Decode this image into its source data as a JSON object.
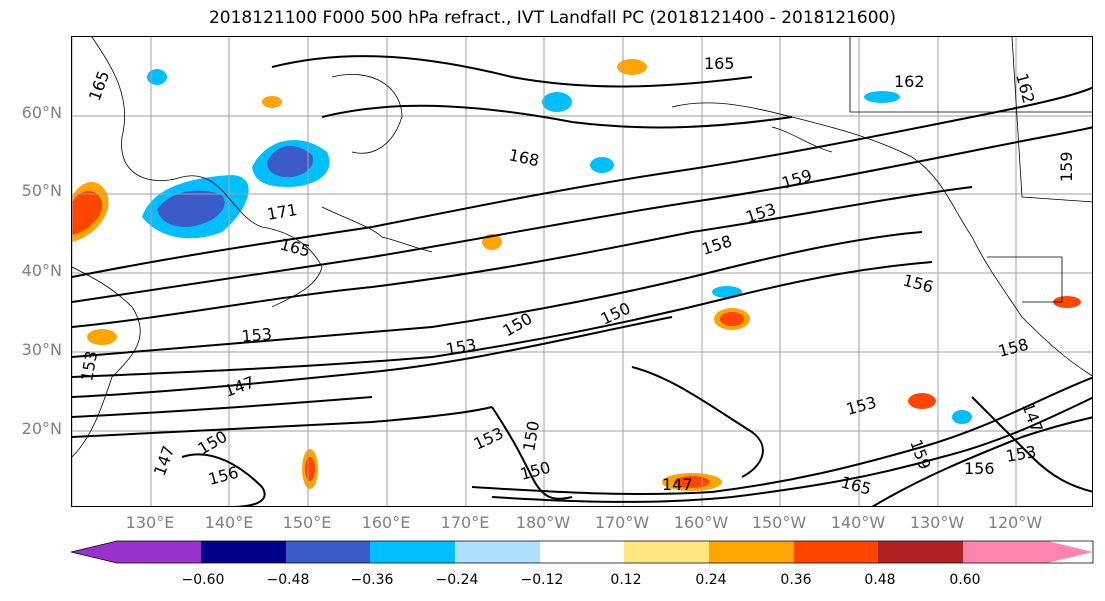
{
  "title": "2018121100 F000 500 hPa refract., IVT Landfall PC (2018121400 - 2018121600)",
  "lat_labels": [
    "60°N",
    "50°N",
    "40°N",
    "30°N",
    "20°N"
  ],
  "lon_labels": [
    "130°E",
    "140°E",
    "150°E",
    "160°E",
    "170°E",
    "180°W",
    "170°W",
    "160°W",
    "150°W",
    "140°W",
    "130°W",
    "120°W"
  ],
  "contour_labels": [
    "165",
    "165",
    "162",
    "168",
    "159",
    "171",
    "165",
    "153",
    "162",
    "159",
    "158",
    "156",
    "153",
    "150",
    "153",
    "150",
    "158",
    "147",
    "153",
    "150",
    "153",
    "156",
    "150",
    "147",
    "165",
    "147",
    "159",
    "150",
    "153",
    "147",
    "156",
    "153"
  ],
  "colorbar": {
    "tick_labels": [
      "−0.60",
      "−0.48",
      "−0.36",
      "−0.24",
      "−0.12",
      "0.12",
      "0.24",
      "0.36",
      "0.48",
      "0.60"
    ],
    "colors": [
      "#9932CC",
      "#00008B",
      "#3B5BC8",
      "#00BFFF",
      "#ADDFFF",
      "#FFFFFF",
      "#FFE680",
      "#FFA500",
      "#FF4500",
      "#B22222",
      "#FF85B0"
    ]
  }
}
